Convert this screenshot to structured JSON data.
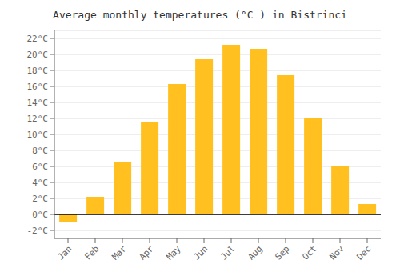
{
  "chart_data": {
    "type": "bar",
    "title": "Average monthly temperatures (°C ) in Bistrinci",
    "categories": [
      "Jan",
      "Feb",
      "Mar",
      "Apr",
      "May",
      "Jun",
      "Jul",
      "Aug",
      "Sep",
      "Oct",
      "Nov",
      "Dec"
    ],
    "values": [
      -1.0,
      2.2,
      6.6,
      11.5,
      16.3,
      19.4,
      21.2,
      20.7,
      17.4,
      12.1,
      6.0,
      1.3
    ],
    "color": "#FFC020",
    "ylim": [
      -3,
      23
    ],
    "yticks": [
      {
        "value": -2,
        "label": "-2°C"
      },
      {
        "value": 0,
        "label": "0°C"
      },
      {
        "value": 2,
        "label": "2°C"
      },
      {
        "value": 4,
        "label": "4°C"
      },
      {
        "value": 6,
        "label": "6°C"
      },
      {
        "value": 8,
        "label": "8°C"
      },
      {
        "value": 10,
        "label": "10°C"
      },
      {
        "value": 12,
        "label": "12°C"
      },
      {
        "value": 14,
        "label": "14°C"
      },
      {
        "value": 16,
        "label": "16°C"
      },
      {
        "value": 18,
        "label": "18°C"
      },
      {
        "value": 20,
        "label": "20°C"
      },
      {
        "value": 22,
        "label": "22°C"
      }
    ],
    "grid": true
  }
}
